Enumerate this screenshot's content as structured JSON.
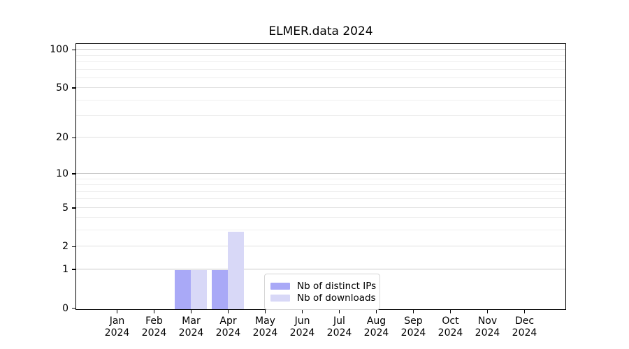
{
  "title": "ELMER.data 2024",
  "chart_data": {
    "type": "bar",
    "title": "ELMER.data 2024",
    "categories": [
      "Jan",
      "Feb",
      "Mar",
      "Apr",
      "May",
      "Jun",
      "Jul",
      "Aug",
      "Sep",
      "Oct",
      "Nov",
      "Dec"
    ],
    "x_tick_year": "2024",
    "series": [
      {
        "name": "Nb of distinct IPs",
        "color": "#a9a9f7",
        "values": [
          0,
          0,
          1,
          1,
          0,
          0,
          0,
          0,
          0,
          0,
          0,
          0
        ]
      },
      {
        "name": "Nb of downloads",
        "color": "#d8d8f7",
        "values": [
          0,
          0,
          1,
          3,
          0,
          0,
          0,
          0,
          0,
          0,
          0,
          0
        ]
      }
    ],
    "y_axis": {
      "scale": "log1p",
      "tick_labels": [
        "0",
        "1",
        "2",
        "5",
        "10",
        "20",
        "50",
        "100"
      ],
      "ticks": [
        0,
        1,
        2,
        5,
        10,
        20,
        50,
        100
      ],
      "major_gridlines": [
        1,
        10,
        100
      ],
      "mid_gridlines": [
        2,
        5,
        20,
        50
      ],
      "minor_gridlines": [
        3,
        4,
        6,
        7,
        8,
        9,
        30,
        40,
        60,
        70,
        80,
        90
      ],
      "range": [
        0,
        110
      ]
    },
    "legend": {
      "position": "lower center",
      "entries": [
        "Nb of distinct IPs",
        "Nb of downloads"
      ]
    },
    "colors": {
      "grid_major": "#c8c8c8",
      "grid_mid": "#e0e0e0",
      "grid_minor": "#efefef",
      "axis": "#000000",
      "background": "#ffffff"
    }
  }
}
